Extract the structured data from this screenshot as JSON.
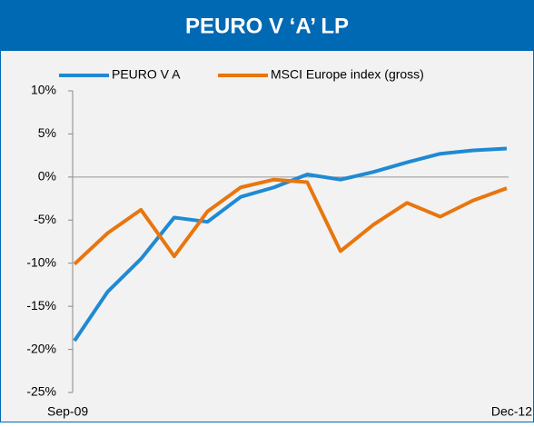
{
  "chart_data": {
    "type": "line",
    "title": "PEURO V ‘A’ LP",
    "categories": [
      "Sep-09",
      null,
      null,
      null,
      null,
      null,
      null,
      null,
      null,
      null,
      null,
      null,
      null,
      "Dec-12"
    ],
    "series": [
      {
        "name": "PEURO V A",
        "color": "#1f8ad3",
        "values": [
          -19.0,
          -13.3,
          -9.5,
          -4.7,
          -5.2,
          -2.3,
          -1.2,
          0.3,
          -0.3,
          0.6,
          1.7,
          2.7,
          3.1,
          3.3
        ]
      },
      {
        "name": "MSCI Europe index (gross)",
        "color": "#e8760f",
        "values": [
          -10.1,
          -6.5,
          -3.8,
          -9.2,
          -4.0,
          -1.2,
          -0.3,
          -0.6,
          -8.6,
          -5.5,
          -3.0,
          -4.6,
          -2.7,
          -1.3
        ]
      }
    ],
    "ylim": [
      -25,
      10
    ],
    "yticks": [
      {
        "value": -25,
        "label": "-25%"
      },
      {
        "value": -20,
        "label": "-20%"
      },
      {
        "value": -15,
        "label": "-15%"
      },
      {
        "value": -10,
        "label": "-10%"
      },
      {
        "value": -5,
        "label": "-5%"
      },
      {
        "value": 0,
        "label": "0%"
      },
      {
        "value": 5,
        "label": "5%"
      },
      {
        "value": 10,
        "label": "10%"
      }
    ]
  }
}
